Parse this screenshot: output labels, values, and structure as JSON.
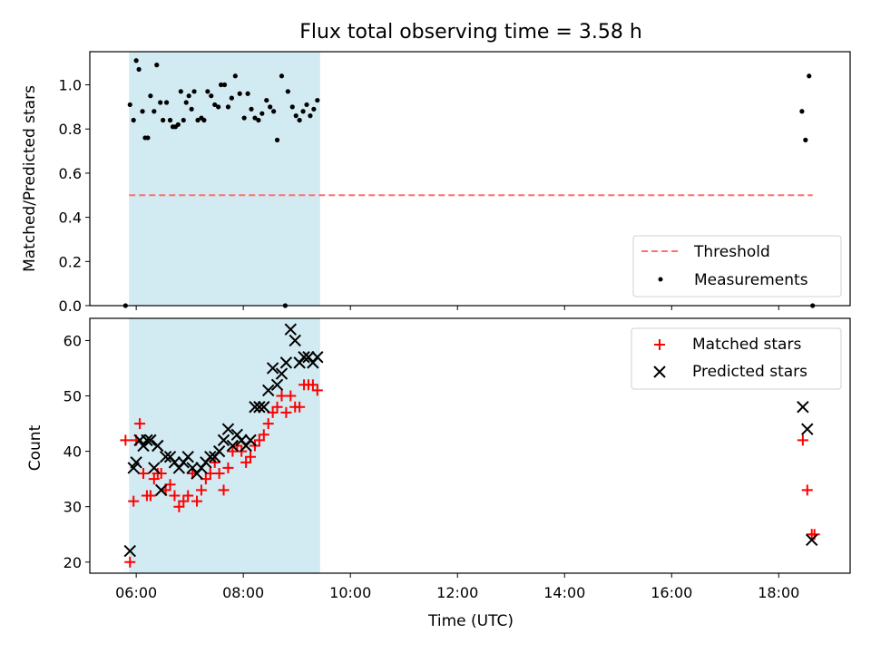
{
  "title": "Flux total observing time = 3.58 h",
  "colors": {
    "shade": "#add8e6",
    "threshold": "#ff6f6f",
    "matched": "#ff0000",
    "predicted": "#000000",
    "measurement": "#000000"
  },
  "chart_data": [
    {
      "type": "scatter",
      "title": "Flux total observing time = 3.58 h",
      "xlabel": "",
      "ylabel": "Matched/Predicted stars",
      "xlim": [
        "05:08",
        "19:20"
      ],
      "ylim": [
        0.0,
        1.15
      ],
      "yticks": [
        "0.0",
        "0.2",
        "0.4",
        "0.6",
        "0.8",
        "1.0"
      ],
      "shaded_interval": [
        "05:52",
        "09:26"
      ],
      "threshold": {
        "name": "Threshold",
        "y": 0.5,
        "x_range": [
          "05:52",
          "18:38"
        ]
      },
      "legend": {
        "placement": "bottom-right",
        "entries": [
          "Threshold",
          "Measurements"
        ]
      },
      "series": [
        {
          "name": "Measurements",
          "x": [
            "05:48",
            "05:53",
            "05:57",
            "06:00",
            "06:03",
            "06:07",
            "06:10",
            "06:13",
            "06:16",
            "06:20",
            "06:23",
            "06:27",
            "06:30",
            "06:34",
            "06:38",
            "06:41",
            "06:44",
            "06:47",
            "06:50",
            "06:53",
            "06:56",
            "06:59",
            "07:02",
            "07:05",
            "07:09",
            "07:13",
            "07:16",
            "07:20",
            "07:24",
            "07:28",
            "07:32",
            "07:35",
            "07:39",
            "07:43",
            "07:47",
            "07:51",
            "07:56",
            "08:01",
            "08:05",
            "08:09",
            "08:13",
            "08:17",
            "08:21",
            "08:26",
            "08:30",
            "08:34",
            "08:38",
            "08:43",
            "08:47",
            "08:50",
            "08:55",
            "08:59",
            "09:03",
            "09:07",
            "09:11",
            "09:15",
            "09:19",
            "09:23",
            "18:26",
            "18:30",
            "18:34",
            "18:38"
          ],
          "y": [
            0.0,
            0.91,
            0.84,
            1.11,
            1.07,
            0.88,
            0.76,
            0.76,
            0.95,
            0.88,
            1.09,
            0.92,
            0.84,
            0.92,
            0.84,
            0.81,
            0.81,
            0.82,
            0.97,
            0.84,
            0.92,
            0.95,
            0.89,
            0.97,
            0.84,
            0.85,
            0.84,
            0.97,
            0.95,
            0.91,
            0.9,
            1.0,
            1.0,
            0.9,
            0.94,
            1.04,
            0.96,
            0.85,
            0.96,
            0.89,
            0.85,
            0.84,
            0.87,
            0.93,
            0.9,
            0.88,
            0.75,
            1.04,
            0.0,
            0.97,
            0.9,
            0.86,
            0.84,
            0.88,
            0.91,
            0.86,
            0.89,
            0.93,
            0.88,
            0.75,
            1.04,
            0.0
          ]
        }
      ]
    },
    {
      "type": "scatter",
      "xlabel": "Time (UTC)",
      "ylabel": "Count",
      "xlim": [
        "05:08",
        "19:20"
      ],
      "ylim": [
        18,
        64
      ],
      "xticks": [
        "06:00",
        "08:00",
        "10:00",
        "12:00",
        "14:00",
        "16:00",
        "18:00"
      ],
      "yticks": [
        "20",
        "30",
        "40",
        "50",
        "60"
      ],
      "shaded_interval": [
        "05:52",
        "09:26"
      ],
      "legend": {
        "placement": "top-right",
        "entries": [
          "Matched stars",
          "Predicted stars"
        ]
      },
      "series": [
        {
          "name": "Matched stars",
          "marker": "+",
          "x": [
            "05:48",
            "05:53",
            "05:57",
            "06:00",
            "06:04",
            "06:08",
            "06:12",
            "06:16",
            "06:20",
            "06:24",
            "06:28",
            "06:33",
            "06:38",
            "06:43",
            "06:48",
            "06:53",
            "06:58",
            "07:03",
            "07:08",
            "07:13",
            "07:18",
            "07:23",
            "07:28",
            "07:33",
            "07:38",
            "07:43",
            "07:48",
            "07:53",
            "07:58",
            "08:03",
            "08:08",
            "08:13",
            "08:18",
            "08:23",
            "08:28",
            "08:33",
            "08:38",
            "08:43",
            "08:48",
            "08:53",
            "08:58",
            "09:03",
            "09:08",
            "09:13",
            "09:18",
            "09:23",
            "18:27",
            "18:32",
            "18:37",
            "18:40"
          ],
          "y": [
            42,
            20,
            31,
            42,
            45,
            36,
            32,
            32,
            35,
            36,
            36,
            33,
            34,
            32,
            30,
            31,
            32,
            36,
            31,
            33,
            35,
            36,
            38,
            36,
            33,
            37,
            40,
            41,
            40,
            38,
            39,
            41,
            42,
            43,
            45,
            47,
            48,
            50,
            47,
            50,
            48,
            48,
            52,
            52,
            52,
            51,
            42,
            33,
            25,
            25
          ]
        },
        {
          "name": "Predicted stars",
          "marker": "x",
          "x": [
            "05:53",
            "05:57",
            "06:00",
            "06:04",
            "06:08",
            "06:12",
            "06:16",
            "06:20",
            "06:24",
            "06:28",
            "06:33",
            "06:38",
            "06:43",
            "06:48",
            "06:53",
            "06:58",
            "07:03",
            "07:08",
            "07:13",
            "07:18",
            "07:23",
            "07:28",
            "07:33",
            "07:38",
            "07:43",
            "07:48",
            "07:53",
            "07:58",
            "08:03",
            "08:08",
            "08:13",
            "08:18",
            "08:23",
            "08:28",
            "08:33",
            "08:38",
            "08:43",
            "08:48",
            "08:53",
            "08:58",
            "09:03",
            "09:08",
            "09:13",
            "09:18",
            "09:23",
            "18:27",
            "18:32",
            "18:37"
          ],
          "y": [
            22,
            37,
            38,
            42,
            41,
            42,
            42,
            37,
            41,
            33,
            39,
            39,
            38,
            37,
            38,
            39,
            37,
            36,
            37,
            38,
            39,
            39,
            40,
            42,
            44,
            41,
            43,
            42,
            41,
            42,
            48,
            48,
            48,
            51,
            55,
            52,
            54,
            56,
            62,
            60,
            56,
            57,
            57,
            56,
            57,
            48,
            44,
            24
          ]
        }
      ]
    }
  ]
}
